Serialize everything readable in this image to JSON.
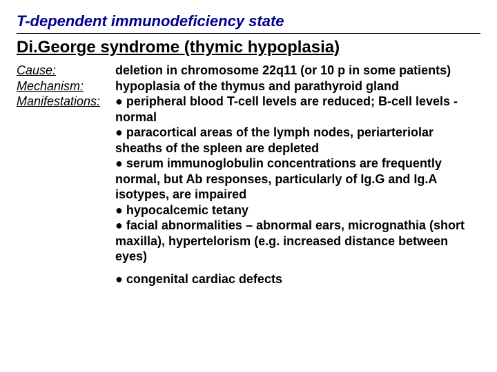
{
  "title": "T-dependent immunodeficiency state",
  "heading": "Di.George syndrome (thymic hypoplasia)",
  "rows": {
    "cause": {
      "label": "Cause:",
      "text": "deletion in chromosome 22q11 (or 10 p in some patients)"
    },
    "mechanism": {
      "label": "Mechanism:",
      "text": " hypoplasia of the thymus and parathyroid gland"
    },
    "manifestations": {
      "label": "Manifestations:",
      "b1": "● peripheral blood T-cell levels are reduced; B-cell levels - normal",
      "b2": "● paracortical areas of the lymph nodes, periarteriolar sheaths of the spleen are depleted",
      "b3": "● serum immunoglobulin concentrations are frequently normal, but Ab responses, particularly of Ig.G and Ig.A isotypes, are impaired",
      "b4": "● hypocalcemic tetany",
      "b5": "● facial abnormalities – abnormal ears, micrognathia (short maxilla), hypertelorism (e.g. increased distance between eyes)",
      "b6": "● congenital cardiac defects"
    }
  },
  "colors": {
    "title": "#000090",
    "text": "#000000",
    "background": "#ffffff"
  },
  "fonts": {
    "title_size": 22,
    "heading_size": 24,
    "body_size": 18
  }
}
